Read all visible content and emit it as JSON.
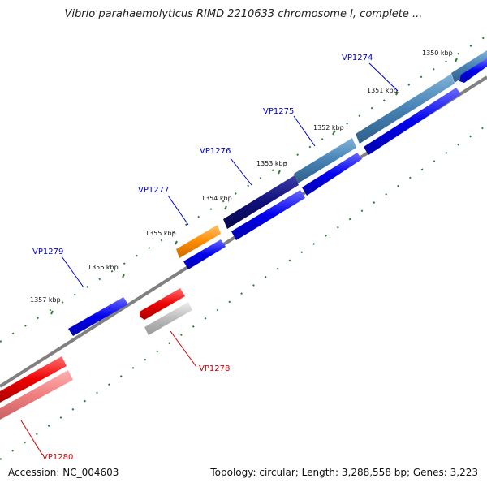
{
  "title": "Vibrio parahaemolyticus RIMD 2210633 chromosome I, complete ...",
  "accession": "Accession: NC_004603",
  "summary": "Topology: circular; Length: 3,288,558 bp; Genes: 3,223",
  "colors": {
    "backbone": "#808080",
    "tick": "#2e7d32",
    "forward_gene": "#0000ee",
    "reverse_gene": "#ee0000",
    "pseudo_gene": "#bbbbbb",
    "light_red": "#f08080",
    "steel_blue": "#4682b4",
    "navy": "#10107a",
    "orange": "#ff8c00",
    "label_blue": "#0000cc",
    "label_red": "#cc0000"
  },
  "ruler": {
    "ticks": [
      {
        "pos_kbp": 1350,
        "label": "1350 kbp"
      },
      {
        "pos_kbp": 1351,
        "label": "1351 kbp"
      },
      {
        "pos_kbp": 1352,
        "label": "1352 kbp"
      },
      {
        "pos_kbp": 1353,
        "label": "1353 kbp"
      },
      {
        "pos_kbp": 1354,
        "label": "1354 kbp"
      },
      {
        "pos_kbp": 1355,
        "label": "1355 kbp"
      },
      {
        "pos_kbp": 1356,
        "label": "1356 kbp"
      },
      {
        "pos_kbp": 1357,
        "label": "1357 kbp"
      }
    ]
  },
  "genes": [
    {
      "id": "VP1274",
      "label": "VP1274",
      "strand": "forward"
    },
    {
      "id": "VP1275",
      "label": "VP1275",
      "strand": "forward"
    },
    {
      "id": "VP1276",
      "label": "VP1276",
      "strand": "forward"
    },
    {
      "id": "VP1277",
      "label": "VP1277",
      "strand": "forward"
    },
    {
      "id": "VP1278",
      "label": "VP1278",
      "strand": "reverse"
    },
    {
      "id": "VP1279",
      "label": "VP1279",
      "strand": "forward"
    },
    {
      "id": "VP1280",
      "label": "VP1280",
      "strand": "reverse"
    }
  ]
}
